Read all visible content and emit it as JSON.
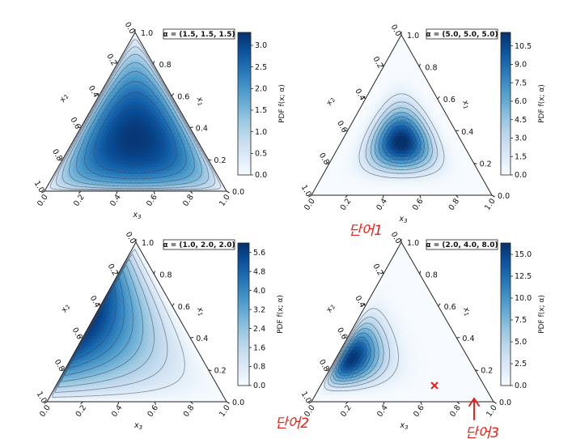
{
  "chart_data": [
    {
      "type": "heatmap",
      "title": "α = (1.5, 1.5, 1.5)",
      "alpha": [
        1.5,
        1.5,
        1.5
      ],
      "colormap": "Blues",
      "colorbar_label": "PDF f(x; α)",
      "colorbar_ticks": [
        "0.0",
        "0.5",
        "1.0",
        "1.5",
        "2.0",
        "2.5",
        "3.0"
      ],
      "colorbar_range": [
        0,
        3.3
      ],
      "axes": [
        "x1",
        "x2",
        "x3"
      ],
      "axis_ticks": [
        "0.0",
        "0.2",
        "0.4",
        "0.6",
        "0.8",
        "1.0"
      ]
    },
    {
      "type": "heatmap",
      "title": "α = (5.0, 5.0, 5.0)",
      "alpha": [
        5.0,
        5.0,
        5.0
      ],
      "colormap": "Blues",
      "colorbar_label": "PDF f(x; α)",
      "colorbar_ticks": [
        "0.0",
        "1.5",
        "3.0",
        "4.5",
        "6.0",
        "7.5",
        "9.0",
        "10.5"
      ],
      "colorbar_range": [
        0,
        11.6
      ],
      "axes": [
        "x1",
        "x2",
        "x3"
      ],
      "axis_ticks": [
        "0.0",
        "0.2",
        "0.4",
        "0.6",
        "0.8",
        "1.0"
      ]
    },
    {
      "type": "heatmap",
      "title": "α = (1.0, 2.0, 2.0)",
      "alpha": [
        1.0,
        2.0,
        2.0
      ],
      "colormap": "Blues",
      "colorbar_label": "PDF f(x; α)",
      "colorbar_ticks": [
        "0.0",
        "0.8",
        "1.6",
        "2.4",
        "3.2",
        "4.0",
        "4.8",
        "5.6"
      ],
      "colorbar_range": [
        0,
        6.0
      ],
      "axes": [
        "x1",
        "x2",
        "x3"
      ],
      "axis_ticks": [
        "0.0",
        "0.2",
        "0.4",
        "0.6",
        "0.8",
        "1.0"
      ]
    },
    {
      "type": "heatmap",
      "title": "α = (2.0, 4.0, 8.0)",
      "alpha": [
        2.0,
        4.0,
        8.0
      ],
      "colormap": "Blues",
      "colorbar_label": "PDF f(x; α)",
      "colorbar_ticks": [
        "0.0",
        "2.5",
        "5.0",
        "7.5",
        "10.0",
        "12.5",
        "15.0"
      ],
      "colorbar_range": [
        0,
        16.3
      ],
      "axes": [
        "x1",
        "x2",
        "x3"
      ],
      "axis_ticks": [
        "0.0",
        "0.2",
        "0.4",
        "0.6",
        "0.8",
        "1.0"
      ]
    }
  ],
  "annotations": [
    {
      "text": "단어1",
      "color": "#e8201a"
    },
    {
      "text": "단어2",
      "color": "#e8201a"
    },
    {
      "text": "단어3",
      "color": "#e8201a"
    }
  ]
}
